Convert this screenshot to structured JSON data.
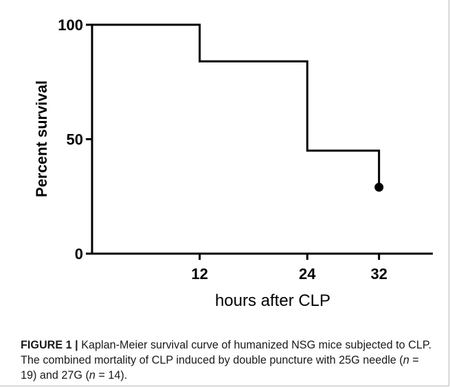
{
  "chart_data": {
    "type": "line",
    "title": "",
    "xlabel": "hours after CLP",
    "ylabel": "Percent survival",
    "xlim": [
      0,
      38
    ],
    "ylim": [
      0,
      100
    ],
    "x_ticks": [
      12,
      24,
      32
    ],
    "y_ticks": [
      0,
      50,
      100
    ],
    "grid": false,
    "legend": "none",
    "series": [
      {
        "style": "step",
        "color": "#000000",
        "x": [
          0,
          12,
          24,
          32
        ],
        "y": [
          100,
          84,
          45,
          29
        ],
        "end_marker": {
          "x": 32,
          "y": 29
        }
      }
    ]
  },
  "caption": {
    "label": "FIGURE 1 |",
    "line1": "Kaplan-Meier survival curve of humanized NSG mice subjected to",
    "line2": "CLP. The combined mortality of CLP induced by double puncture with 25G",
    "line3_a": "needle (",
    "italic_n": "n",
    "line3_b": " = 19) and 27G (",
    "line3_c": " = 14)."
  }
}
